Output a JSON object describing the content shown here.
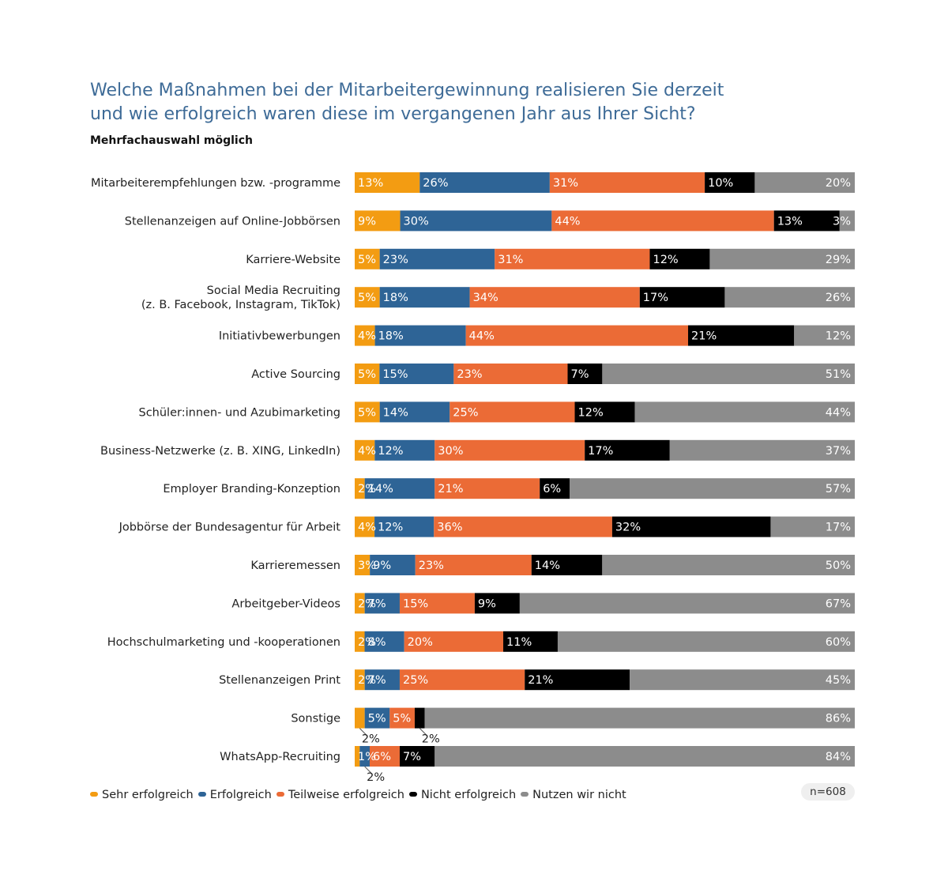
{
  "title_line1": "Welche Maßnahmen bei der Mitarbeitergewinnung realisieren Sie derzeit",
  "title_line2": "und wie erfolgreich waren diese im vergangenen Jahr aus Ihrer Sicht?",
  "subtitle": "Mehrfachauswahl möglich",
  "sample": "n=608",
  "colors": {
    "sehr": "#f39c12",
    "erfolgreich": "#2e6496",
    "teilweise": "#eb6b36",
    "nicht": "#000000",
    "nutzen": "#8c8c8c"
  },
  "chart_data": {
    "type": "bar",
    "orientation": "horizontal",
    "stacked": true,
    "xlim": [
      0,
      100
    ],
    "categories": [
      [
        "Mitarbeiterempfehlungen bzw. -programme"
      ],
      [
        "Stellenanzeigen auf Online-Jobbörsen"
      ],
      [
        "Karriere-Website"
      ],
      [
        "Social Media Recruiting",
        "(z. B. Facebook, Instagram, TikTok)"
      ],
      [
        "Initiativbewerbungen"
      ],
      [
        "Active Sourcing"
      ],
      [
        "Schüler:innen- und Azubimarketing"
      ],
      [
        "Business-Netzwerke (z. B. XING, LinkedIn)"
      ],
      [
        "Employer Branding-Konzeption"
      ],
      [
        "Jobbörse der Bundesagentur für Arbeit"
      ],
      [
        "Karrieremessen"
      ],
      [
        "Arbeitgeber-Videos"
      ],
      [
        "Hochschulmarketing und -kooperationen"
      ],
      [
        "Stellenanzeigen Print"
      ],
      [
        "Sonstige"
      ],
      [
        "WhatsApp-Recruiting"
      ]
    ],
    "series": [
      {
        "name": "Sehr erfolgreich",
        "color_key": "sehr",
        "values": [
          13,
          9,
          5,
          5,
          4,
          5,
          5,
          4,
          2,
          4,
          3,
          2,
          2,
          2,
          2,
          1
        ]
      },
      {
        "name": "Erfolgreich",
        "color_key": "erfolgreich",
        "values": [
          26,
          30,
          23,
          18,
          18,
          15,
          14,
          12,
          14,
          12,
          9,
          7,
          8,
          7,
          5,
          2
        ]
      },
      {
        "name": "Teilweise erfolgreich",
        "color_key": "teilweise",
        "values": [
          31,
          44,
          31,
          34,
          44,
          23,
          25,
          30,
          21,
          36,
          23,
          15,
          20,
          25,
          5,
          6
        ]
      },
      {
        "name": "Nicht erfolgreich",
        "color_key": "nicht",
        "values": [
          10,
          13,
          12,
          17,
          21,
          7,
          12,
          17,
          6,
          32,
          14,
          9,
          11,
          21,
          2,
          7
        ]
      },
      {
        "name": "Nutzen wir nicht",
        "color_key": "nutzen",
        "values": [
          20,
          3,
          29,
          26,
          12,
          51,
          44,
          37,
          57,
          17,
          50,
          67,
          60,
          45,
          86,
          84
        ]
      }
    ],
    "callouts": [
      {
        "row": 14,
        "series": 0,
        "text": "2%"
      },
      {
        "row": 14,
        "series": 3,
        "text": "2%"
      },
      {
        "row": 15,
        "series": 1,
        "text": "2%"
      }
    ]
  }
}
